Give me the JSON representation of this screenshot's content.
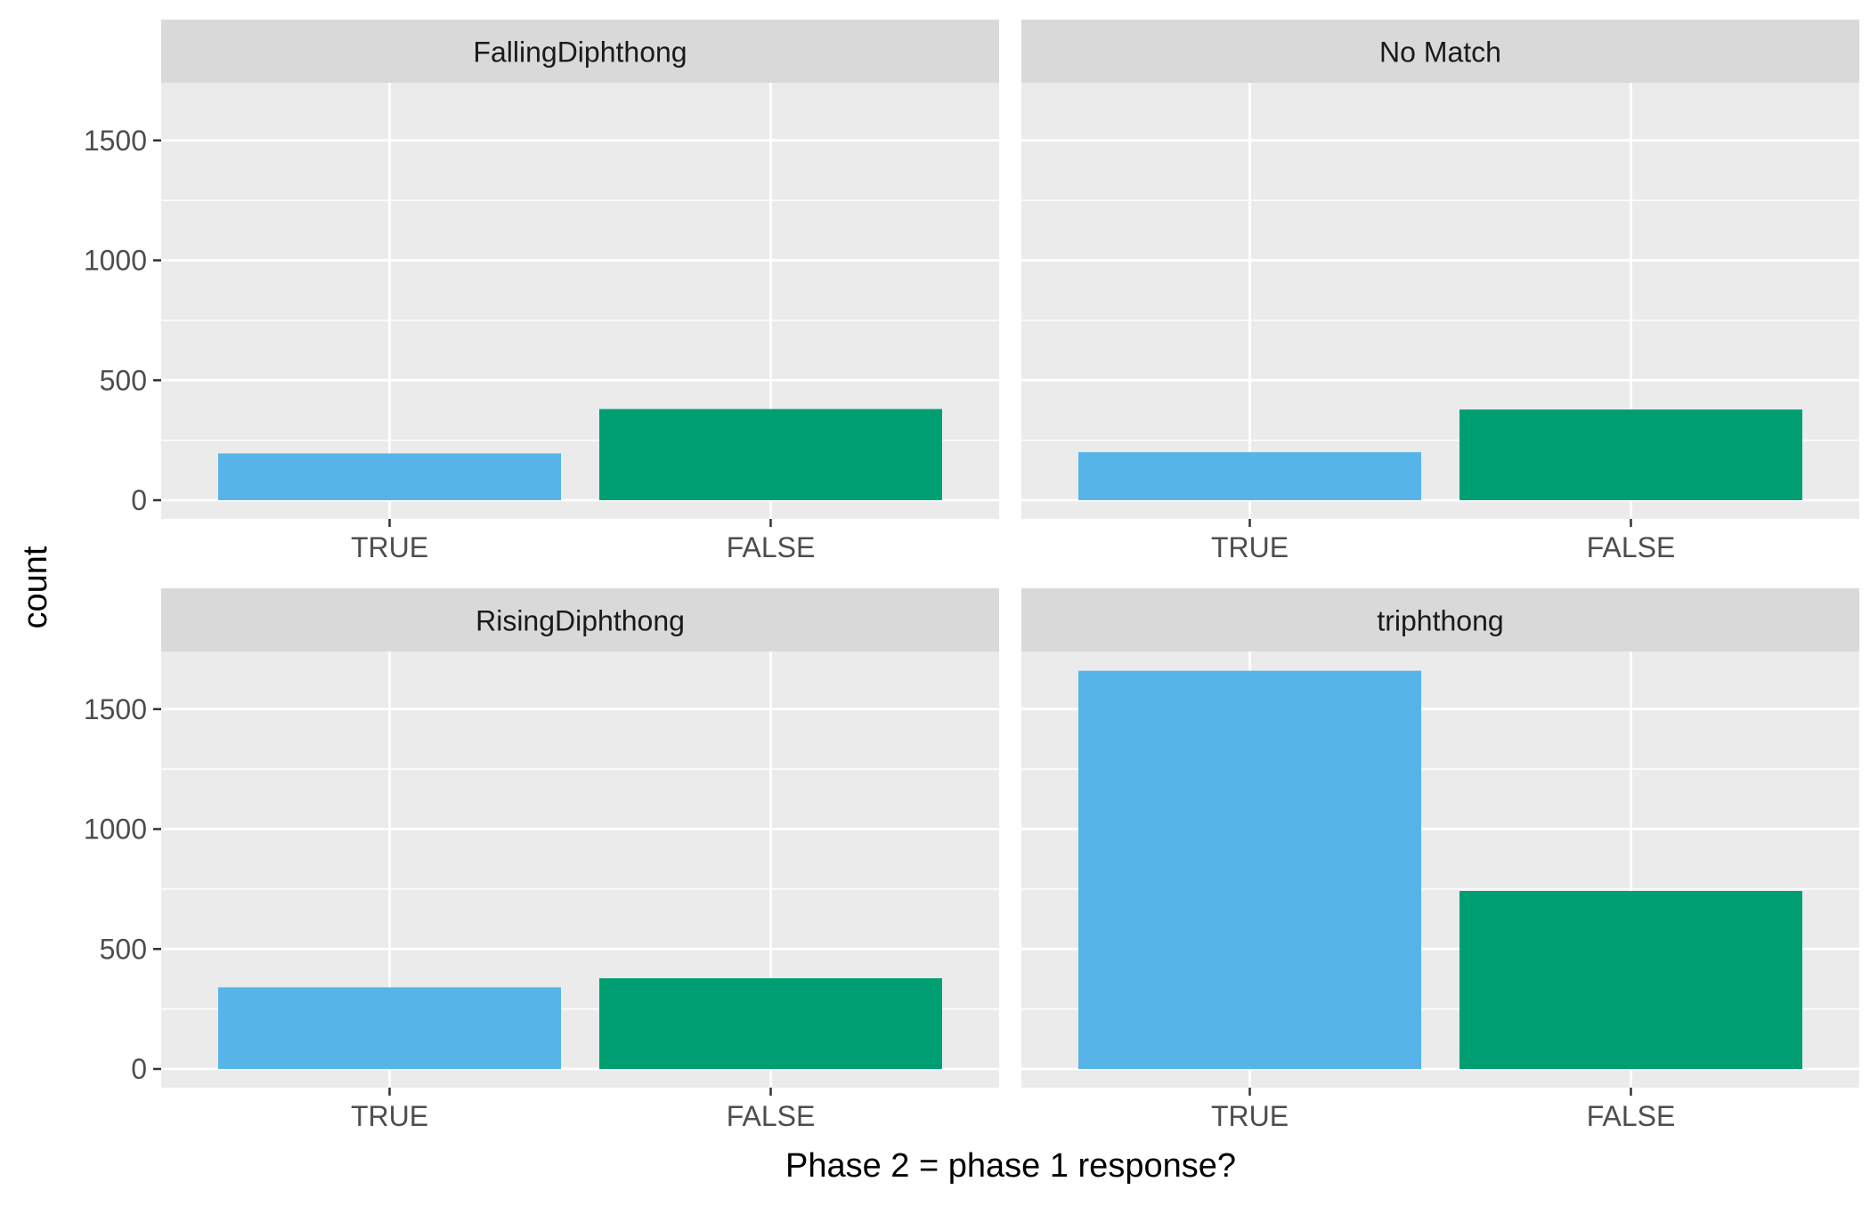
{
  "chart_data": {
    "type": "bar",
    "facet_layout": "2x2",
    "categories": [
      "TRUE",
      "FALSE"
    ],
    "xlabel": "Phase 2 = phase 1 response?",
    "ylabel": "count",
    "ylim": [
      0,
      1750
    ],
    "yticks": [
      0,
      500,
      1000,
      1500
    ],
    "grid": true,
    "colors": {
      "TRUE": "#56B4E9",
      "FALSE": "#009E73",
      "panel_background": "#EBEBEB",
      "strip_background": "#D9D9D9",
      "gridline": "#FFFFFF"
    },
    "panels": [
      {
        "name": "FallingDiphthong",
        "values": [
          195,
          380
        ]
      },
      {
        "name": "No Match",
        "values": [
          200,
          378
        ]
      },
      {
        "name": "RisingDiphthong",
        "values": [
          340,
          378
        ]
      },
      {
        "name": "triphthong",
        "values": [
          1660,
          742
        ]
      }
    ]
  }
}
